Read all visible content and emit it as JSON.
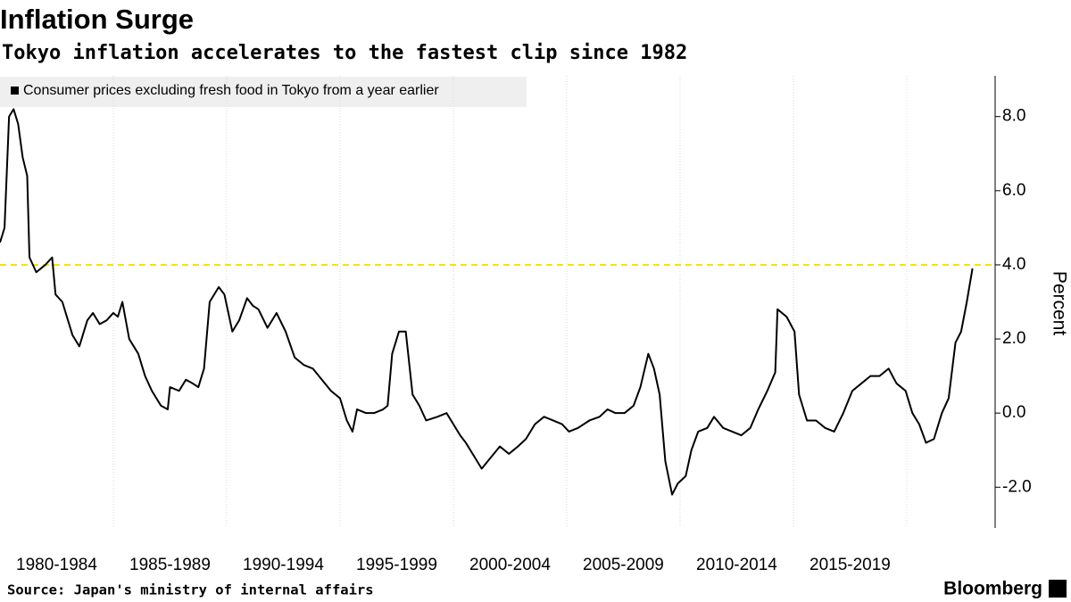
{
  "chart_data": {
    "type": "line",
    "title": "Inflation Surge",
    "subtitle": "Tokyo inflation accelerates to the fastest clip since 1982",
    "source": "Source: Japan's ministry of internal affairs",
    "brand": "Bloomberg",
    "y_axis_label": "Percent",
    "grid": "x",
    "x": [
      1980.0,
      1980.2,
      1980.4,
      1980.6,
      1980.8,
      1981.0,
      1981.2,
      1981.3,
      1981.6,
      1982.0,
      1982.3,
      1982.45,
      1982.75,
      1983.0,
      1983.2,
      1983.5,
      1983.85,
      1984.1,
      1984.4,
      1984.7,
      1985.0,
      1985.2,
      1985.4,
      1985.7,
      1986.1,
      1986.4,
      1986.7,
      1987.1,
      1987.4,
      1987.5,
      1987.9,
      1988.2,
      1988.5,
      1988.75,
      1989.0,
      1989.25,
      1989.65,
      1989.9,
      1990.25,
      1990.55,
      1990.9,
      1991.15,
      1991.4,
      1991.8,
      1992.2,
      1992.6,
      1993.0,
      1993.4,
      1993.8,
      1994.2,
      1994.6,
      1995.0,
      1995.3,
      1995.55,
      1995.75,
      1996.15,
      1996.5,
      1996.9,
      1997.1,
      1997.3,
      1997.6,
      1997.9,
      1998.2,
      1998.5,
      1998.8,
      1999.3,
      1999.7,
      2000.0,
      2000.3,
      2000.55,
      2000.85,
      2001.25,
      2001.65,
      2002.05,
      2002.45,
      2002.85,
      2003.2,
      2003.6,
      2004.0,
      2004.4,
      2004.8,
      2005.1,
      2005.5,
      2006.0,
      2006.45,
      2006.8,
      2007.15,
      2007.55,
      2007.95,
      2008.25,
      2008.6,
      2008.85,
      2009.1,
      2009.35,
      2009.65,
      2009.9,
      2010.25,
      2010.5,
      2010.8,
      2011.2,
      2011.5,
      2011.9,
      2012.3,
      2012.7,
      2013.1,
      2013.45,
      2013.85,
      2014.2,
      2014.3,
      2014.7,
      2015.05,
      2015.25,
      2015.6,
      2016.0,
      2016.4,
      2016.8,
      2017.2,
      2017.6,
      2018.0,
      2018.4,
      2018.8,
      2019.2,
      2019.55,
      2019.95,
      2020.25,
      2020.55,
      2020.85,
      2021.2,
      2021.55,
      2021.85,
      2022.15,
      2022.4,
      2022.65,
      2022.9
    ],
    "series": [
      {
        "name": "Consumer prices excluding fresh food in Tokyo from a year earlier",
        "color": "#000000",
        "values": [
          4.6,
          5.0,
          8.0,
          8.2,
          7.8,
          6.9,
          6.4,
          4.2,
          3.8,
          4.0,
          4.2,
          3.2,
          3.0,
          2.5,
          2.1,
          1.8,
          2.5,
          2.7,
          2.4,
          2.5,
          2.7,
          2.6,
          3.0,
          2.0,
          1.6,
          1.0,
          0.6,
          0.2,
          0.1,
          0.7,
          0.6,
          0.9,
          0.8,
          0.7,
          1.2,
          3.0,
          3.4,
          3.2,
          2.2,
          2.5,
          3.1,
          2.9,
          2.8,
          2.3,
          2.7,
          2.2,
          1.5,
          1.3,
          1.2,
          0.9,
          0.6,
          0.4,
          -0.2,
          -0.5,
          0.1,
          0.0,
          0.0,
          0.1,
          0.2,
          1.6,
          2.2,
          2.2,
          0.5,
          0.2,
          -0.2,
          -0.1,
          0.0,
          -0.3,
          -0.6,
          -0.8,
          -1.1,
          -1.5,
          -1.2,
          -0.9,
          -1.1,
          -0.9,
          -0.7,
          -0.3,
          -0.1,
          -0.2,
          -0.3,
          -0.5,
          -0.4,
          -0.2,
          -0.1,
          0.1,
          0.0,
          0.0,
          0.2,
          0.7,
          1.6,
          1.2,
          0.5,
          -1.3,
          -2.2,
          -1.9,
          -1.7,
          -1.0,
          -0.5,
          -0.4,
          -0.1,
          -0.4,
          -0.5,
          -0.6,
          -0.4,
          0.1,
          0.6,
          1.1,
          2.8,
          2.6,
          2.2,
          0.5,
          -0.2,
          -0.2,
          -0.4,
          -0.5,
          0.0,
          0.6,
          0.8,
          1.0,
          1.0,
          1.2,
          0.8,
          0.6,
          0.0,
          -0.3,
          -0.8,
          -0.7,
          0.0,
          0.4,
          1.9,
          2.2,
          3.0,
          3.9
        ]
      }
    ],
    "reference_line": {
      "value": 4,
      "color": "#f5e400"
    },
    "xlim": [
      1980,
      2023.9
    ],
    "xticks": [
      {
        "value": 1980,
        "label": "1980-1984"
      },
      {
        "value": 1985,
        "label": "1985-1989"
      },
      {
        "value": 1990,
        "label": "1990-1994"
      },
      {
        "value": 1995,
        "label": "1995-1999"
      },
      {
        "value": 2000,
        "label": "2000-2004"
      },
      {
        "value": 2005,
        "label": "2005-2009"
      },
      {
        "value": 2010,
        "label": "2010-2014"
      },
      {
        "value": 2015,
        "label": "2015-2019"
      }
    ],
    "ylim": [
      -3.1,
      9.1
    ],
    "yticks": [
      {
        "value": -2,
        "label": "-2.0"
      },
      {
        "value": 0,
        "label": "0.0"
      },
      {
        "value": 2,
        "label": "2.0"
      },
      {
        "value": 4,
        "label": "4.0"
      },
      {
        "value": 6,
        "label": "6.0"
      },
      {
        "value": 8,
        "label": "8.0"
      }
    ]
  }
}
